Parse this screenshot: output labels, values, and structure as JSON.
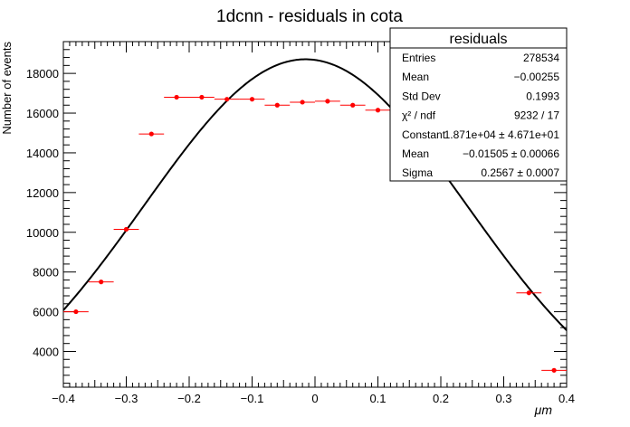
{
  "chart_data": {
    "type": "scatter",
    "title": "1dcnn - residuals in cota",
    "xlabel": "μm",
    "ylabel": "Number of events",
    "xlim": [
      -0.4,
      0.4
    ],
    "ylim": [
      2200,
      19600
    ],
    "x_ticks": [
      "−0.4",
      "−0.3",
      "−0.2",
      "−0.1",
      "0",
      "0.1",
      "0.2",
      "0.3",
      "0.4"
    ],
    "y_ticks": [
      "4000",
      "6000",
      "8000",
      "10000",
      "12000",
      "14000",
      "16000",
      "18000"
    ],
    "bin_half_width": 0.02,
    "series": [
      {
        "kind": "points",
        "color": "#ff0000",
        "x": [
          -0.38,
          -0.34,
          -0.3,
          -0.26,
          -0.22,
          -0.18,
          -0.14,
          -0.1,
          -0.06,
          -0.02,
          0.02,
          0.06,
          0.1,
          0.34,
          0.38
        ],
        "y": [
          6000,
          7500,
          10150,
          14950,
          16800,
          16800,
          16700,
          16700,
          16400,
          16550,
          16600,
          16400,
          16150,
          6950,
          3050
        ]
      },
      {
        "kind": "fit",
        "color": "#000000",
        "function": "gaus",
        "constant": 18710,
        "mean": -0.01505,
        "sigma": 0.2567
      }
    ],
    "stats_box": {
      "title": "residuals",
      "rows": [
        {
          "label": "Entries",
          "value": "278534"
        },
        {
          "label": "Mean",
          "value": "−0.00255"
        },
        {
          "label": "Std Dev",
          "value": "0.1993"
        },
        {
          "label": "χ² / ndf",
          "value": "9232 / 17"
        },
        {
          "label": "Constant",
          "value": "1.871e+04  ± 4.671e+01"
        },
        {
          "label": "Mean",
          "value": "−0.01505  ± 0.00066"
        },
        {
          "label": "Sigma",
          "value": "0.2567  ± 0.0007"
        }
      ]
    }
  }
}
